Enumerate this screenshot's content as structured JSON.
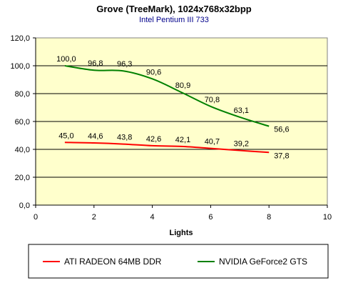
{
  "chart_data": {
    "type": "line",
    "title": "Grove (TreeMark), 1024x768x32bpp",
    "subtitle": "Intel Pentium III 733",
    "xlabel": "Lights",
    "ylabel": "",
    "xlim": [
      0,
      10
    ],
    "ylim": [
      0,
      120
    ],
    "x_ticks": [
      0,
      2,
      4,
      6,
      8,
      10
    ],
    "y_ticks": [
      "0,0",
      "20,0",
      "40,0",
      "60,0",
      "80,0",
      "100,0",
      "120,0"
    ],
    "grid": "horizontal",
    "plot_background": "#ffffcc",
    "legend_position": "bottom",
    "x": [
      1,
      2,
      3,
      4,
      5,
      6,
      7,
      8
    ],
    "series": [
      {
        "name": "ATI RADEON 64MB DDR",
        "color": "#ff0000",
        "values": [
          45.0,
          44.6,
          43.8,
          42.6,
          42.1,
          40.7,
          39.2,
          37.8
        ],
        "labels": [
          "45,0",
          "44,6",
          "43,8",
          "42,6",
          "42,1",
          "40,7",
          "39,2",
          "37,8"
        ]
      },
      {
        "name": "NVIDIA GeForce2 GTS",
        "color": "#008000",
        "values": [
          100.0,
          96.8,
          96.3,
          90.6,
          80.9,
          70.8,
          63.1,
          56.6
        ],
        "labels": [
          "100,0",
          "96,8",
          "96,3",
          "90,6",
          "80,9",
          "70,8",
          "63,1",
          "56,6"
        ]
      }
    ]
  }
}
